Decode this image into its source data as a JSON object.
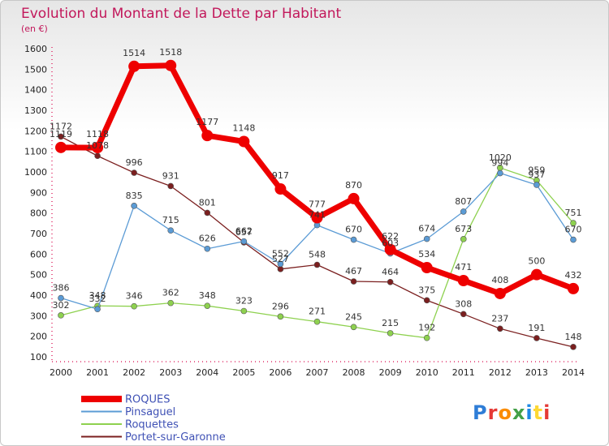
{
  "title": "Evolution du Montant de la Dette par Habitant",
  "subtitle": "(en €)",
  "logo": "Proxiti",
  "chart_data": {
    "type": "line",
    "x": [
      "2000",
      "2001",
      "2002",
      "2003",
      "2004",
      "2005",
      "2006",
      "2007",
      "2008",
      "2009",
      "2010",
      "2011",
      "2012",
      "2013",
      "2014"
    ],
    "ylim": [
      100,
      1600
    ],
    "yticks": [
      100,
      200,
      300,
      400,
      500,
      600,
      700,
      800,
      900,
      1000,
      1100,
      1200,
      1300,
      1400,
      1500,
      1600
    ],
    "grid": false,
    "legend_position": "bottom-left",
    "series": [
      {
        "name": "ROQUES",
        "color": "#ee0000",
        "values": [
          1119,
          1118,
          1514,
          1518,
          1177,
          1148,
          917,
          777,
          870,
          622,
          534,
          471,
          408,
          500,
          432
        ]
      },
      {
        "name": "Pinsaguel",
        "color": "#5b9bd5",
        "values": [
          386,
          332,
          835,
          715,
          626,
          662,
          552,
          741,
          670,
          603,
          674,
          807,
          994,
          937,
          670
        ]
      },
      {
        "name": "Roquettes",
        "color": "#8ed14f",
        "values": [
          302,
          348,
          346,
          362,
          348,
          323,
          296,
          271,
          245,
          215,
          192,
          673,
          1020,
          959,
          751
        ]
      },
      {
        "name": "Portet-sur-Garonne",
        "color": "#7b1f1f",
        "values": [
          1172,
          1078,
          996,
          931,
          801,
          657,
          527,
          548,
          467,
          464,
          375,
          308,
          237,
          191,
          148
        ]
      }
    ]
  }
}
